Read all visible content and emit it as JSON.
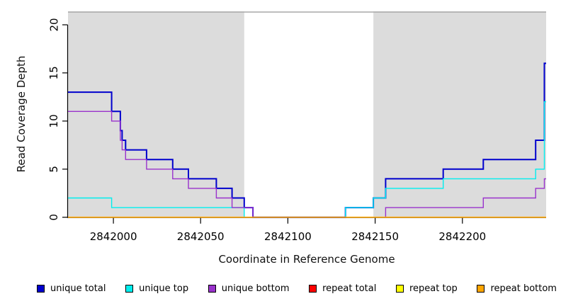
{
  "chart_data": {
    "type": "line",
    "subtype": "step-coverage",
    "title": "",
    "xlabel": "Coordinate in Reference Genome",
    "ylabel": "Read Coverage Depth",
    "xlim": [
      2841974,
      2842248
    ],
    "ylim": [
      0,
      21.4
    ],
    "x_ticks": [
      2842000,
      2842050,
      2842100,
      2842150,
      2842200
    ],
    "y_ticks": [
      0,
      5,
      10,
      15,
      20
    ],
    "grid": false,
    "legend_position": "bottom",
    "panel_background": "#ffffff",
    "shaded_regions": {
      "color": "#DCDCDC",
      "border_color": "#A9A9A9",
      "ranges": [
        [
          2841974,
          2842075
        ],
        [
          2842149,
          2842248
        ]
      ]
    },
    "axis_color": "#000000",
    "series": [
      {
        "name": "unique total",
        "color": "#0000CD",
        "line_width": 2,
        "points": [
          [
            2841974,
            13
          ],
          [
            2841999,
            11
          ],
          [
            2842004,
            9
          ],
          [
            2842005,
            8
          ],
          [
            2842007,
            7
          ],
          [
            2842019,
            6
          ],
          [
            2842034,
            5
          ],
          [
            2842043,
            4
          ],
          [
            2842059,
            3
          ],
          [
            2842068,
            2
          ],
          [
            2842075,
            1
          ],
          [
            2842080,
            0
          ],
          [
            2842133,
            1
          ],
          [
            2842149,
            2
          ],
          [
            2842156,
            4
          ],
          [
            2842189,
            5
          ],
          [
            2842212,
            6
          ],
          [
            2842242,
            8
          ],
          [
            2842247,
            16
          ]
        ]
      },
      {
        "name": "unique top",
        "color": "#00EEEE",
        "line_width": 1.4,
        "points": [
          [
            2841974,
            2
          ],
          [
            2841999,
            1
          ],
          [
            2842075,
            0
          ],
          [
            2842133,
            1
          ],
          [
            2842149,
            2
          ],
          [
            2842156,
            3
          ],
          [
            2842189,
            4
          ],
          [
            2842242,
            5
          ],
          [
            2842247,
            12
          ]
        ]
      },
      {
        "name": "unique bottom",
        "color": "#9932CC",
        "line_width": 1.4,
        "points": [
          [
            2841974,
            11
          ],
          [
            2841999,
            10
          ],
          [
            2842004,
            8
          ],
          [
            2842005,
            7
          ],
          [
            2842007,
            6
          ],
          [
            2842019,
            5
          ],
          [
            2842034,
            4
          ],
          [
            2842043,
            3
          ],
          [
            2842059,
            2
          ],
          [
            2842068,
            1
          ],
          [
            2842080,
            0
          ],
          [
            2842156,
            1
          ],
          [
            2842212,
            2
          ],
          [
            2842242,
            3
          ],
          [
            2842247,
            4
          ]
        ]
      },
      {
        "name": "repeat total",
        "color": "#FF0000",
        "line_width": 1.4,
        "points": [
          [
            2841974,
            0
          ]
        ]
      },
      {
        "name": "repeat top",
        "color": "#FFFF00",
        "line_width": 1.4,
        "points": [
          [
            2841974,
            0
          ]
        ]
      },
      {
        "name": "repeat bottom",
        "color": "#FFA500",
        "line_width": 1.7,
        "points": [
          [
            2841974,
            0
          ]
        ]
      }
    ]
  }
}
